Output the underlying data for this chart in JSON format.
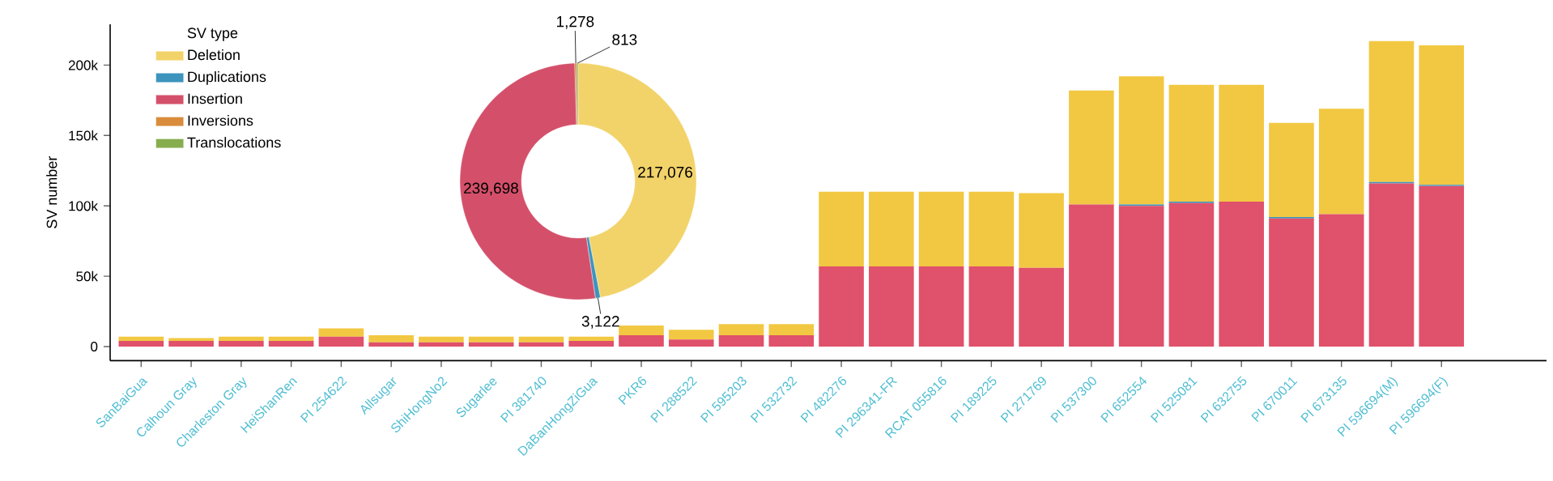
{
  "chart_data": [
    {
      "type": "bar",
      "stacked": true,
      "ylabel": "SV number",
      "categories": [
        "SanBaiGua",
        "Calhoun Gray",
        "Charleston Gray",
        "HeiShanRen",
        "PI 254622",
        "Allsugar",
        "ShiHongNo2",
        "Sugarlee",
        "PI 381740",
        "DaBanHongZiGua",
        "PKR6",
        "PI 288522",
        "PI 595203",
        "PI 532732",
        "PI 482276",
        "PI 296341-FR",
        "RCAT 055816",
        "PI 189225",
        "PI 271769",
        "PI 537300",
        "PI 652554",
        "PI 525081",
        "PI 632755",
        "PI 670011",
        "PI 673135",
        "PI 596694(M)",
        "PI 596694(F)"
      ],
      "series": [
        {
          "color": "#e0516b",
          "values": [
            4000,
            4000,
            4000,
            4000,
            7000,
            3000,
            3000,
            3000,
            3000,
            4000,
            8000,
            5000,
            8000,
            8000,
            57000,
            57000,
            57000,
            57000,
            56000,
            101000,
            100000,
            102000,
            103000,
            91000,
            94000,
            116000,
            114000
          ]
        },
        {
          "color": "#3d94bc",
          "values": [
            0,
            0,
            0,
            0,
            0,
            0,
            0,
            0,
            0,
            0,
            0,
            0,
            0,
            0,
            0,
            0,
            0,
            0,
            0,
            0,
            1000,
            1000,
            0,
            1000,
            0,
            1000,
            1000
          ]
        },
        {
          "color": "#f2c842",
          "values": [
            3000,
            2000,
            3000,
            3000,
            6000,
            5000,
            4000,
            4000,
            4000,
            3000,
            7000,
            7000,
            8000,
            8000,
            53000,
            53000,
            53000,
            53000,
            53000,
            81000,
            91000,
            83000,
            83000,
            67000,
            75000,
            100000,
            99000
          ]
        }
      ],
      "ylim": [
        -10000,
        229000
      ],
      "yticks": [
        0,
        {
          "value": 50000,
          "label": "50k"
        },
        {
          "value": 100000,
          "label": "100k"
        },
        {
          "value": 150000,
          "label": "150k"
        },
        {
          "value": 200000,
          "label": "200k"
        }
      ]
    },
    {
      "type": "donut",
      "legend": "left",
      "legend_title": "SV type",
      "categories": [
        "Deletion",
        "Duplications",
        "Insertion",
        "Inversions",
        "Translocations"
      ],
      "values": [
        217076,
        3122,
        239698,
        1278,
        813
      ],
      "value_labels": [
        "217,076",
        "3,122",
        "239,698",
        "1,278",
        "813"
      ],
      "colors": [
        "#f2d36a",
        "#3d94bc",
        "#d4506a",
        "#d98c3c",
        "#86ad4e"
      ]
    }
  ]
}
